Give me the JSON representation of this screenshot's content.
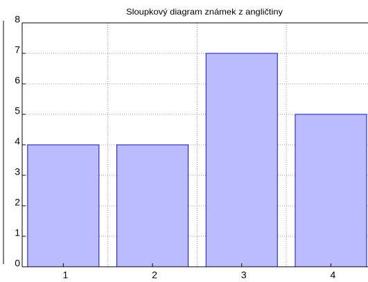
{
  "chart_data": {
    "type": "bar",
    "title": "Sloupkový diagram známek z angličtiny",
    "categories": [
      "1",
      "2",
      "3",
      "4"
    ],
    "values": [
      4,
      4,
      7,
      5
    ],
    "color": "#bbbbff",
    "ylim": [
      0,
      8
    ],
    "yticks": [
      0,
      1,
      2,
      3,
      4,
      5,
      6,
      7,
      8
    ],
    "grid": true
  }
}
